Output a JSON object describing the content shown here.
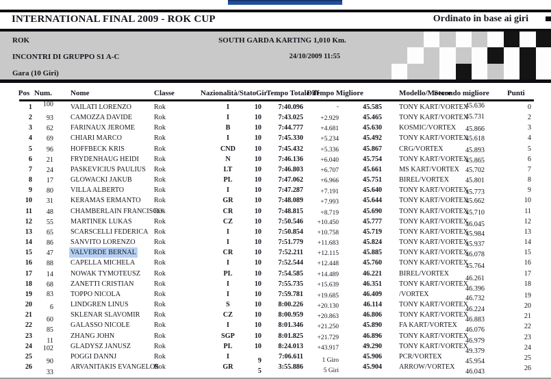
{
  "colors": {
    "accent_bar": "#1f4e9c",
    "band_gray": "#c9c9c9",
    "selection_highlight": "#b5d1f3",
    "rule_black": "#0e0e12",
    "checker_white": "#fdfdfd",
    "checker_black": "#141414"
  },
  "header": {
    "title": "INTERNATIONAL FINAL 2009 - ROK CUP",
    "sort_note": "Ordinato in base ai giri",
    "info": {
      "category": "ROK",
      "circuit": "SOUTH GARDA KARTING 1,010 Km.",
      "group": "INCONTRI DI GRUPPO S1 A-C",
      "datetime": "24/10/2009 11:55",
      "session": "Gara (10 Giri)"
    },
    "checker_rows": [
      "ggwgwgwbwb",
      "gwgwgwbwbw",
      "wggwbwgwbw"
    ]
  },
  "table": {
    "headers": {
      "pos": "Pos",
      "num": "Num.",
      "nome": "Nome",
      "classe": "Classe",
      "naz": "Nazionalità/Stato",
      "gir": "Gir",
      "tempo": "Tempo Totale",
      "diff": "Diff",
      "best": "Tempo Migliore",
      "model": "Modello/Motore",
      "second": "Secondo migliore",
      "punti": "Punti"
    },
    "rows": [
      {
        "pos": "1",
        "num": "100",
        "name": "VAILATI LORENZO",
        "cls": "Rok",
        "nat": "I",
        "laps": "10",
        "total": "7:40.096",
        "gap": "-",
        "best": "45.585",
        "model": "TONY KART/VORTEX",
        "second": "45.636",
        "points": "0",
        "highlight": false,
        "dy": {
          "num": -4,
          "second": -2,
          "gap": 0,
          "laps": 0,
          "points": 0
        }
      },
      {
        "pos": "2",
        "num": "93",
        "name": "CAMOZZA DAVIDE",
        "cls": "Rok",
        "nat": "I",
        "laps": "10",
        "total": "7:43.025",
        "gap": "+2.929",
        "best": "45.465",
        "model": "TONY KART/VORTEX",
        "second": "45.731",
        "points": "2",
        "highlight": false,
        "dy": {
          "num": 1,
          "second": -1,
          "gap": 2,
          "laps": 0,
          "points": 0
        }
      },
      {
        "pos": "3",
        "num": "62",
        "name": "FARINAUX JEROME",
        "cls": "Rok",
        "nat": "B",
        "laps": "10",
        "total": "7:44.777",
        "gap": "+4.681",
        "best": "45.630",
        "model": "KOSMIC/VORTEX",
        "second": "45.866",
        "points": "3",
        "highlight": false,
        "dy": {
          "num": 1,
          "second": 2,
          "gap": 2,
          "laps": 0,
          "points": 0
        }
      },
      {
        "pos": "4",
        "num": "69",
        "name": "CHIARI MARCO",
        "cls": "Rok",
        "nat": "I",
        "laps": "10",
        "total": "7:45.330",
        "gap": "+5.234",
        "best": "45.492",
        "model": "TONY KART/VORTEX",
        "second": "45.618",
        "points": "4",
        "highlight": false,
        "dy": {
          "num": 1,
          "second": 1,
          "gap": 2,
          "laps": 0,
          "points": 0
        }
      },
      {
        "pos": "5",
        "num": "96",
        "name": "HOFFBECK KRIS",
        "cls": "Rok",
        "nat": "CND",
        "laps": "10",
        "total": "7:45.432",
        "gap": "+5.336",
        "best": "45.867",
        "model": "CRG/VORTEX",
        "second": "45.893",
        "points": "5",
        "highlight": false,
        "dy": {
          "num": 1,
          "second": 2,
          "gap": 2,
          "laps": 0,
          "points": 0
        }
      },
      {
        "pos": "6",
        "num": "21",
        "name": "FRYDENHAUG HEIDI",
        "cls": "Rok",
        "nat": "N",
        "laps": "10",
        "total": "7:46.136",
        "gap": "+6.040",
        "best": "45.754",
        "model": "TONY KART/VORTEX",
        "second": "45.865",
        "points": "6",
        "highlight": false,
        "dy": {
          "num": 1,
          "second": 2,
          "gap": 2,
          "laps": 0,
          "points": 0
        }
      },
      {
        "pos": "7",
        "num": "24",
        "name": "PASKEVICIUS PAULIUS",
        "cls": "Rok",
        "nat": "LT",
        "laps": "10",
        "total": "7:46.803",
        "gap": "+6.707",
        "best": "45.661",
        "model": "MS KART/VORTEX",
        "second": "45.702",
        "points": "7",
        "highlight": false,
        "dy": {
          "num": 1,
          "second": 1,
          "gap": 2,
          "laps": 0,
          "points": 0
        }
      },
      {
        "pos": "8",
        "num": "17",
        "name": "GLOWACKI JAKUB",
        "cls": "Rok",
        "nat": "PL",
        "laps": "10",
        "total": "7:47.062",
        "gap": "+6.966",
        "best": "45.751",
        "model": "BIREL/VORTEX",
        "second": "45.801",
        "points": "8",
        "highlight": false,
        "dy": {
          "num": 1,
          "second": 1,
          "gap": 2,
          "laps": 0,
          "points": 0
        }
      },
      {
        "pos": "9",
        "num": "80",
        "name": "VILLA ALBERTO",
        "cls": "Rok",
        "nat": "I",
        "laps": "10",
        "total": "7:47.287",
        "gap": "+7.191",
        "best": "45.640",
        "model": "TONY KART/VORTEX",
        "second": "45.773",
        "points": "9",
        "highlight": false,
        "dy": {
          "num": 1,
          "second": 3,
          "gap": 3,
          "laps": 0,
          "points": 0
        }
      },
      {
        "pos": "10",
        "num": "31",
        "name": "KERAMAS ERMANTO",
        "cls": "Rok",
        "nat": "GR",
        "laps": "10",
        "total": "7:48.089",
        "gap": "+7.993",
        "best": "45.644",
        "model": "TONY KART/VORTEX",
        "second": "45.662",
        "points": "10",
        "highlight": false,
        "dy": {
          "num": 1,
          "second": 1,
          "gap": 3,
          "laps": 0,
          "points": 0
        }
      },
      {
        "pos": "11",
        "num": "48",
        "name": "CHAMBERLAIN FRANCISCO",
        "cls": "Rok",
        "nat": "CR",
        "laps": "10",
        "total": "7:48.815",
        "gap": "+8.719",
        "best": "45.690",
        "model": "TONY KART/VORTEX",
        "second": "45.710",
        "points": "11",
        "highlight": false,
        "dy": {
          "num": 1,
          "second": 2,
          "gap": 3,
          "laps": 0,
          "points": 0
        }
      },
      {
        "pos": "12",
        "num": "55",
        "name": "MARTINEK LUKAS",
        "cls": "Rok",
        "nat": "CZ",
        "laps": "10",
        "total": "7:50.546",
        "gap": "+10.450",
        "best": "45.777",
        "model": "TONY KART/VORTEX",
        "second": "46.045",
        "points": "12",
        "highlight": false,
        "dy": {
          "num": 1,
          "second": 4,
          "gap": 2,
          "laps": 0,
          "points": 0
        }
      },
      {
        "pos": "13",
        "num": "65",
        "name": "SCARSCELLI FEDERICA",
        "cls": "Rok",
        "nat": "I",
        "laps": "10",
        "total": "7:50.854",
        "gap": "+10.758",
        "best": "45.719",
        "model": "TONY KART/VORTEX",
        "second": "45.984",
        "points": "13",
        "highlight": false,
        "dy": {
          "num": 1,
          "second": 3,
          "gap": 2,
          "laps": 0,
          "points": 0
        }
      },
      {
        "pos": "14",
        "num": "86",
        "name": "SANVITO LORENZO",
        "cls": "Rok",
        "nat": "I",
        "laps": "10",
        "total": "7:51.779",
        "gap": "+11.683",
        "best": "45.824",
        "model": "TONY KART/VORTEX",
        "second": "45.937",
        "points": "14",
        "highlight": false,
        "dy": {
          "num": 1,
          "second": 3,
          "gap": 2,
          "laps": 0,
          "points": 0
        }
      },
      {
        "pos": "15",
        "num": "47",
        "name": "VALVERDE BERNAL",
        "cls": "Rok",
        "nat": "CR",
        "laps": "10",
        "total": "7:52.211",
        "gap": "+12.115",
        "best": "45.885",
        "model": "TONY KART/VORTEX",
        "second": "46.078",
        "points": "15",
        "highlight": true,
        "dy": {
          "num": 1,
          "second": 3,
          "gap": 2,
          "laps": 0,
          "points": 0
        }
      },
      {
        "pos": "16",
        "num": "88",
        "name": "CAPELLA MICHELA",
        "cls": "Rok",
        "nat": "I",
        "laps": "10",
        "total": "7:52.544",
        "gap": "+12.448",
        "best": "45.760",
        "model": "TONY KART/VORTEX",
        "second": "45.764",
        "points": "16",
        "highlight": false,
        "dy": {
          "num": 1,
          "second": 5,
          "gap": 2,
          "laps": 0,
          "points": 0
        }
      },
      {
        "pos": "17",
        "num": "14",
        "name": "NOWAK TYMOTEUSZ",
        "cls": "Rok",
        "nat": "PL",
        "laps": "10",
        "total": "7:54.585",
        "gap": "+14.489",
        "best": "46.221",
        "model": "BIREL/VORTEX",
        "second": "46.261",
        "points": "17",
        "highlight": false,
        "dy": {
          "num": 1,
          "second": 7,
          "gap": 2,
          "laps": 0,
          "points": 0
        }
      },
      {
        "pos": "18",
        "num": "68",
        "name": "ZANETTI CRISTIAN",
        "cls": "Rok",
        "nat": "I",
        "laps": "10",
        "total": "7:55.735",
        "gap": "+15.639",
        "best": "46.351",
        "model": "TONY KART/VORTEX",
        "second": "46.396",
        "points": "18",
        "highlight": false,
        "dy": {
          "num": 1,
          "second": 7,
          "gap": 2,
          "laps": 0,
          "points": 0
        }
      },
      {
        "pos": "19",
        "num": "83",
        "name": "TOPPO NICOLA",
        "cls": "Rok",
        "nat": "I",
        "laps": "10",
        "total": "7:59.781",
        "gap": "+19.685",
        "best": "46.409",
        "model": "/VORTEX",
        "second": "46.732",
        "points": "19",
        "highlight": false,
        "dy": {
          "num": 0,
          "second": 6,
          "gap": 3,
          "laps": 0,
          "points": 2
        }
      },
      {
        "pos": "20",
        "num": "6",
        "name": "LINDGREN LINUS",
        "cls": "Rok",
        "nat": "S",
        "laps": "10",
        "total": "8:00.226",
        "gap": "+20.130",
        "best": "46.114",
        "model": "TONY KART/VORTEX",
        "second": "46.224",
        "points": "20",
        "highlight": false,
        "dy": {
          "num": 4,
          "second": 7,
          "gap": 3,
          "laps": 0,
          "points": 2
        }
      },
      {
        "pos": "21",
        "num": "60",
        "name": "SKLENAR SLAVOMIR",
        "cls": "Rok",
        "nat": "CZ",
        "laps": "10",
        "total": "8:00.959",
        "gap": "+20.863",
        "best": "46.806",
        "model": "TONY KART/VORTEX",
        "second": "46.883",
        "points": "21",
        "highlight": false,
        "dy": {
          "num": 7,
          "second": 7,
          "gap": 3,
          "laps": 0,
          "points": 2
        }
      },
      {
        "pos": "22",
        "num": "85",
        "name": "GALASSO NICOLE",
        "cls": "Rok",
        "nat": "I",
        "laps": "10",
        "total": "8:01.346",
        "gap": "+21.250",
        "best": "45.890",
        "model": "FA KART/VORTEX",
        "second": "46.076",
        "points": "22",
        "highlight": false,
        "dy": {
          "num": 7,
          "second": 7,
          "gap": 3,
          "laps": 0,
          "points": 2
        }
      },
      {
        "pos": "23",
        "num": "11",
        "name": "ZHANG JOHN",
        "cls": "Rok",
        "nat": "SGP",
        "laps": "10",
        "total": "8:01.825",
        "gap": "+21.729",
        "best": "46.896",
        "model": "TONY KART/VORTEX",
        "second": "46.979",
        "points": "23",
        "highlight": false,
        "dy": {
          "num": 7,
          "second": 7,
          "gap": 3,
          "laps": 0,
          "points": 2
        }
      },
      {
        "pos": "24",
        "num": "102",
        "name": "GLADYSZ JANUSZ",
        "cls": "Rok",
        "nat": "PL",
        "laps": "10",
        "total": "8:24.013",
        "gap": "+43.917",
        "best": "49.290",
        "model": "TONY KART/VORTEX",
        "second": "49.379",
        "points": "24",
        "highlight": false,
        "dy": {
          "num": 3,
          "second": 7,
          "gap": 3,
          "laps": 0,
          "points": 2
        }
      },
      {
        "pos": "25",
        "num": "90",
        "name": "POGGI DANNJ",
        "cls": "Rok",
        "nat": "I",
        "laps": "9",
        "total": "7:06.611",
        "gap": "1 Giro",
        "best": "45.906",
        "model": "PCR/VORTEX",
        "second": "45.954",
        "points": "25",
        "highlight": false,
        "dy": {
          "num": 7,
          "second": 7,
          "gap": 6,
          "laps": 6,
          "points": 2
        }
      },
      {
        "pos": "26",
        "num": "33",
        "name": "ARVANITAKIS EVANGELOS",
        "cls": "Rok",
        "nat": "GR",
        "laps": "5",
        "total": "3:55.886",
        "gap": "5 Giri",
        "best": "45.904",
        "model": "ARROW/VORTEX",
        "second": "46.043",
        "points": "26",
        "highlight": false,
        "dy": {
          "num": 8,
          "second": 7,
          "gap": 6,
          "laps": 6,
          "points": 2
        }
      }
    ]
  }
}
